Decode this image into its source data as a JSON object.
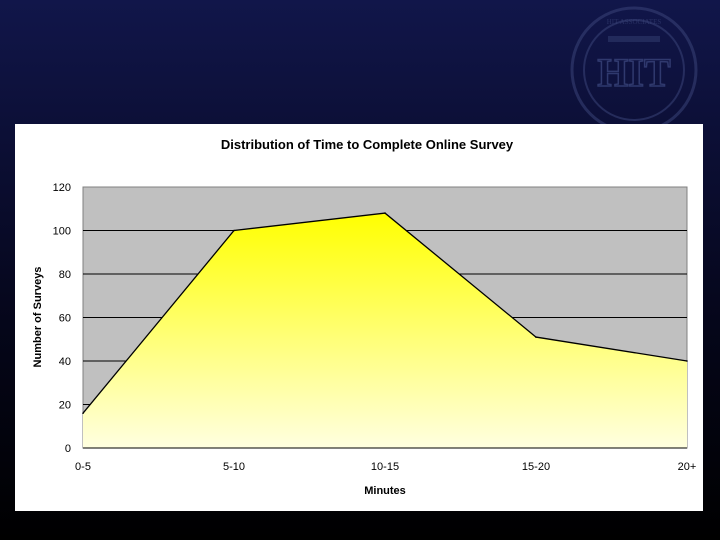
{
  "slide": {
    "background_top": "#11164a",
    "background_bottom": "#000000"
  },
  "seal": {
    "icon": "university-seal-icon",
    "emblem_text": "HIT",
    "ring_text": "HIT ASSOCIATES"
  },
  "chart_data": {
    "type": "area",
    "title": "Distribution of Time to Complete Online Survey",
    "xlabel": "Minutes",
    "ylabel": "Number of Surveys",
    "categories": [
      "0-5",
      "5-10",
      "10-15",
      "15-20",
      "20+"
    ],
    "series": [
      {
        "values": [
          16,
          100,
          108,
          51,
          40
        ]
      }
    ],
    "ylim": [
      0,
      120
    ],
    "yticks": [
      0,
      20,
      40,
      60,
      80,
      100,
      120
    ],
    "plot_background": "#c0c0c0",
    "fill_top": "#ffff00",
    "fill_bottom": "#ffffe0",
    "line_color": "#000000",
    "grid": true,
    "legend": "none"
  }
}
